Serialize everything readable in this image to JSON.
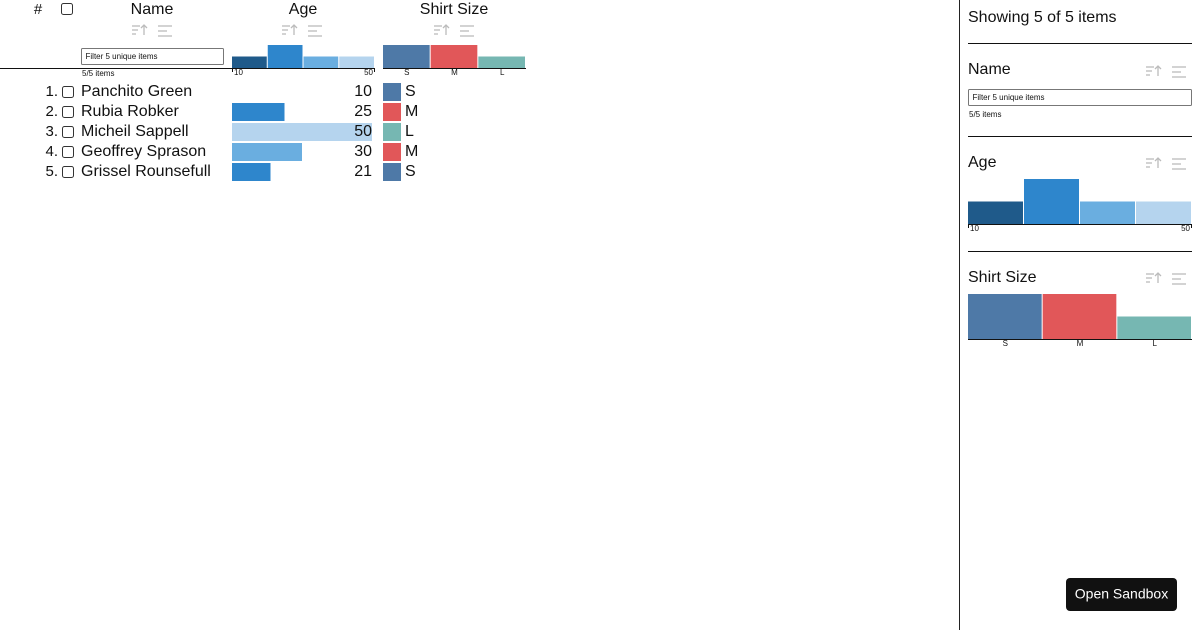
{
  "table": {
    "headers": {
      "index": "#",
      "name": "Name",
      "age": "Age",
      "shirt": "Shirt Size"
    },
    "name_filter_placeholder": "Filter 5 unique items",
    "name_count": "5/5 items",
    "age_domain": [
      10,
      50
    ],
    "age_hist_counts": [
      1,
      2,
      1,
      1
    ],
    "age_hist_colors": [
      "#1f5a8a",
      "#2e86cc",
      "#6aaee0",
      "#b5d4ee"
    ],
    "shirt_categories": [
      "S",
      "M",
      "L"
    ],
    "shirt_counts": [
      2,
      2,
      1
    ],
    "shirt_colors": [
      "#4e79a7",
      "#e15759",
      "#76b7b2"
    ],
    "rows": [
      {
        "index": "1.",
        "name": "Panchito Green",
        "age": 10,
        "shirt": 0
      },
      {
        "index": "2.",
        "name": "Rubia Robker",
        "age": 25,
        "shirt": 1
      },
      {
        "index": "3.",
        "name": "Micheil Sappell",
        "age": 50,
        "shirt": 2
      },
      {
        "index": "4.",
        "name": "Geoffrey Sprason",
        "age": 30,
        "shirt": 1
      },
      {
        "index": "5.",
        "name": "Grissel Rounsefull",
        "age": 21,
        "shirt": 0
      }
    ]
  },
  "sidebar": {
    "summary": "Showing 5 of 5 items",
    "button": "Open Sandbox"
  }
}
